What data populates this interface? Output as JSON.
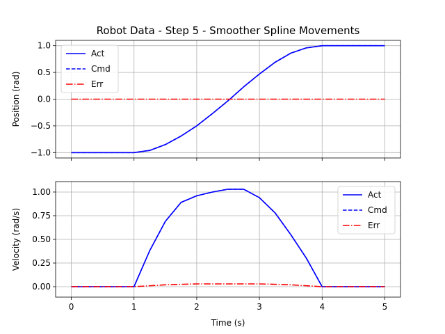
{
  "figure": {
    "title": "Robot Data - Step 5 - Smoother Spline Movements",
    "xlabel": "Time (s)"
  },
  "chart_data": [
    {
      "type": "line",
      "ylabel": "Position (rad)",
      "xlim": [
        -0.25,
        5.25
      ],
      "ylim": [
        -1.1,
        1.1
      ],
      "xticks": [
        "0",
        "1",
        "2",
        "3",
        "4",
        "5"
      ],
      "yticks": [
        "-1.0",
        "-0.5",
        "0.0",
        "0.5",
        "1.0"
      ],
      "grid": true,
      "legend_position": "upper-left",
      "series": [
        {
          "name": "Act",
          "style": "solid",
          "color": "#0000ff",
          "x": [
            0,
            1,
            1.25,
            1.5,
            1.75,
            2,
            2.25,
            2.5,
            2.75,
            3,
            3.25,
            3.5,
            3.75,
            4,
            5
          ],
          "y": [
            -1.0,
            -1.0,
            -0.96,
            -0.85,
            -0.69,
            -0.5,
            -0.27,
            -0.03,
            0.23,
            0.47,
            0.69,
            0.86,
            0.96,
            1.0,
            1.0
          ]
        },
        {
          "name": "Cmd",
          "style": "dashed",
          "color": "#0000ff",
          "x": [
            0,
            1,
            1.25,
            1.5,
            1.75,
            2,
            2.25,
            2.5,
            2.75,
            3,
            3.25,
            3.5,
            3.75,
            4,
            5
          ],
          "y": [
            -1.0,
            -1.0,
            -0.96,
            -0.85,
            -0.69,
            -0.5,
            -0.27,
            -0.03,
            0.23,
            0.47,
            0.69,
            0.86,
            0.96,
            1.0,
            1.0
          ]
        },
        {
          "name": "Err",
          "style": "dashdot",
          "color": "#ff0000",
          "x": [
            0,
            5
          ],
          "y": [
            0.0,
            0.0
          ]
        }
      ]
    },
    {
      "type": "line",
      "ylabel": "Velocity (rad/s)",
      "xlim": [
        -0.25,
        5.25
      ],
      "ylim": [
        -0.11,
        1.11
      ],
      "xticks": [
        "0",
        "1",
        "2",
        "3",
        "4",
        "5"
      ],
      "yticks": [
        "0.00",
        "0.25",
        "0.50",
        "0.75",
        "1.00"
      ],
      "grid": true,
      "legend_position": "upper-right",
      "series": [
        {
          "name": "Act",
          "style": "solid",
          "color": "#0000ff",
          "x": [
            0,
            0.5,
            1,
            1.25,
            1.5,
            1.75,
            2,
            2.25,
            2.5,
            2.75,
            3,
            3.25,
            3.5,
            3.75,
            4,
            4.5,
            5
          ],
          "y": [
            0.0,
            0.0,
            0.0,
            0.38,
            0.69,
            0.89,
            0.96,
            1.0,
            1.03,
            1.03,
            0.94,
            0.78,
            0.55,
            0.3,
            0.0,
            0.0,
            0.0
          ]
        },
        {
          "name": "Cmd",
          "style": "dashed",
          "color": "#0000ff",
          "x": [
            0,
            0.5,
            1,
            1.25,
            1.5,
            1.75,
            2,
            2.25,
            2.5,
            2.75,
            3,
            3.25,
            3.5,
            3.75,
            4,
            4.5,
            5
          ],
          "y": [
            0.0,
            0.0,
            0.0,
            0.38,
            0.69,
            0.89,
            0.96,
            1.0,
            1.03,
            1.03,
            0.94,
            0.78,
            0.55,
            0.3,
            0.0,
            0.0,
            0.0
          ]
        },
        {
          "name": "Err",
          "style": "dashdot",
          "color": "#ff0000",
          "x": [
            0,
            0.5,
            1,
            1.5,
            2,
            2.5,
            3,
            3.5,
            4,
            4.5,
            5
          ],
          "y": [
            0.0,
            0.0,
            0.0,
            0.02,
            0.03,
            0.03,
            0.03,
            0.02,
            0.0,
            0.0,
            0.0
          ]
        }
      ]
    }
  ]
}
